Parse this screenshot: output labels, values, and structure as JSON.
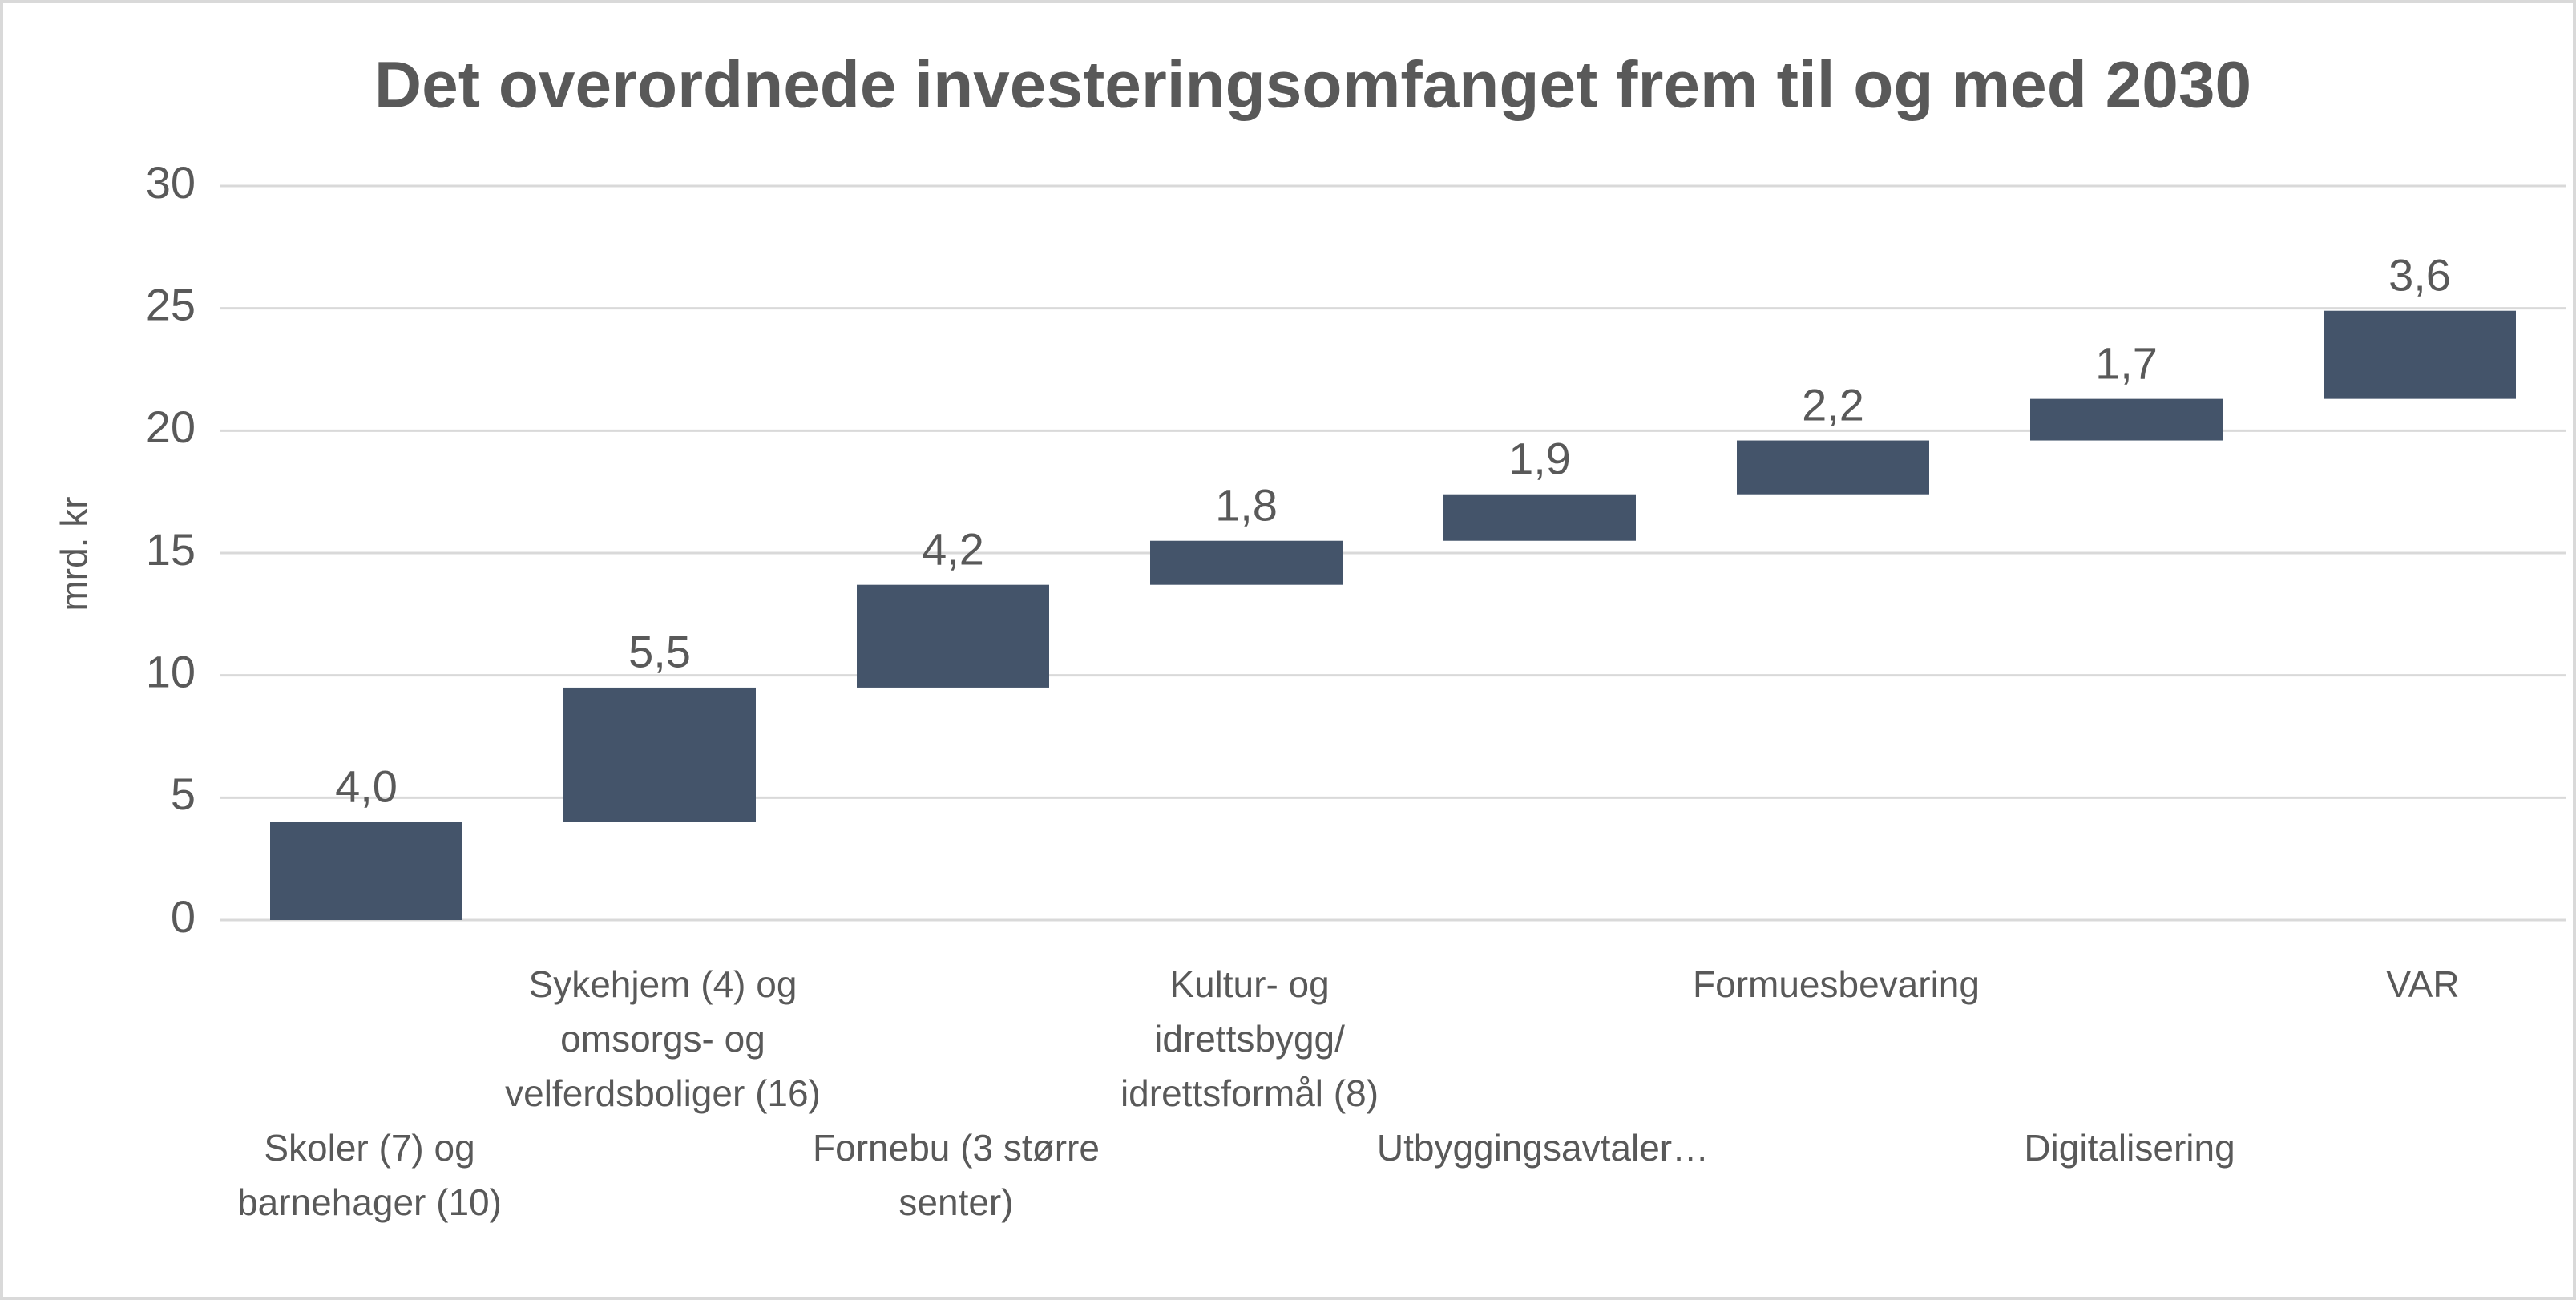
{
  "chart_data": {
    "type": "waterfall",
    "title": "Det overordnede investeringsomfanget frem til og med 2030",
    "y_label": "mrd. kr",
    "categories": [
      "Skoler (7) og barnehager (10)",
      "Sykehjem (4) og omsorgs- og velferdsboliger (16)",
      "Fornebu (3 større senter)",
      "Kultur- og idrettsbygg/ idrettsformål (8)",
      "Utbyggingsavtaler…",
      "Formuesbevaring",
      "Digitalisering",
      "VAR"
    ],
    "values": [
      4.0,
      5.5,
      4.2,
      1.8,
      1.9,
      2.2,
      1.7,
      3.6
    ],
    "value_labels": [
      "4,0",
      "5,5",
      "4,2",
      "1,8",
      "1,9",
      "2,2",
      "1,7",
      "3,6"
    ],
    "color": "#44546a",
    "ylim": [
      0,
      30
    ],
    "yticks": [
      0,
      5,
      10,
      15,
      20,
      25,
      30
    ],
    "grid": true
  }
}
